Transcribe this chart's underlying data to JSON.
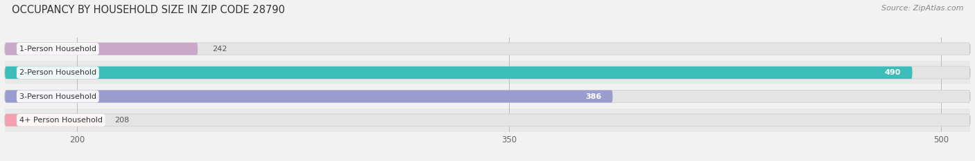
{
  "title": "OCCUPANCY BY HOUSEHOLD SIZE IN ZIP CODE 28790",
  "source": "Source: ZipAtlas.com",
  "categories": [
    "1-Person Household",
    "2-Person Household",
    "3-Person Household",
    "4+ Person Household"
  ],
  "values": [
    242,
    490,
    386,
    208
  ],
  "bar_colors": [
    "#c9a8c9",
    "#3dbdba",
    "#9b9cce",
    "#f4a0b0"
  ],
  "label_colors": [
    "#555555",
    "#555555",
    "#555555",
    "#555555"
  ],
  "value_inside": [
    false,
    true,
    true,
    false
  ],
  "xmin": 175,
  "xmax": 510,
  "xticks": [
    200,
    350,
    500
  ],
  "bar_height": 0.52,
  "container_color": "#e8e8e8",
  "row_bg_even": "#f2f2f2",
  "row_bg_odd": "#e9e9e9",
  "title_fontsize": 10.5,
  "source_fontsize": 8,
  "label_fontsize": 8,
  "value_fontsize": 8,
  "tick_fontsize": 8.5
}
